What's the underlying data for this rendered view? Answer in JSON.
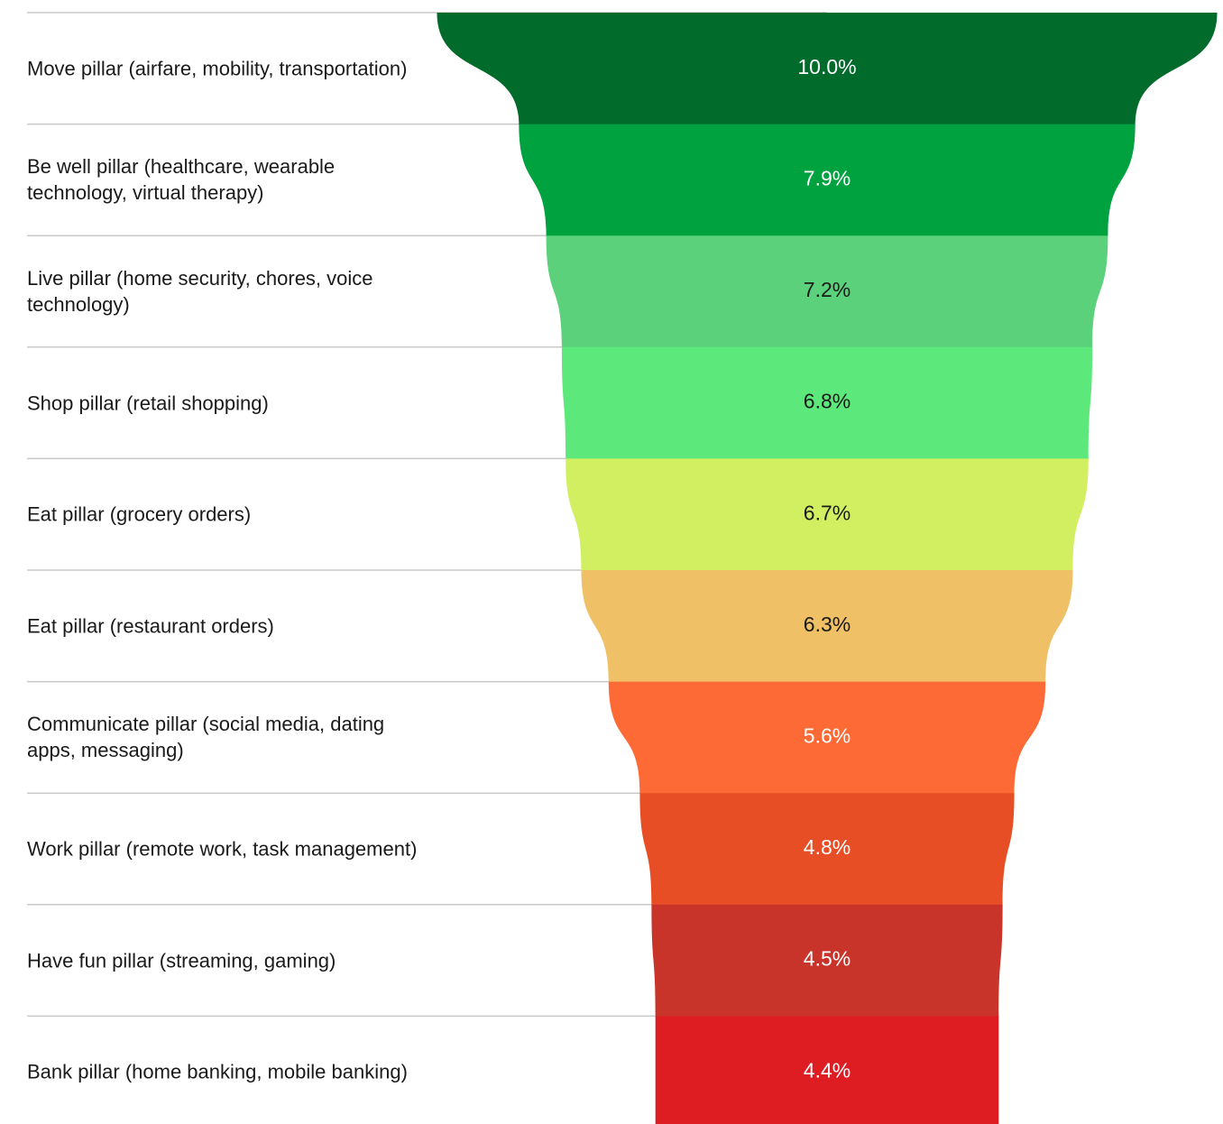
{
  "chart_data": {
    "type": "funnel",
    "categories": [
      "Move pillar (airfare, mobility, transportation)",
      "Be well pillar (healthcare, wearable technology, virtual therapy)",
      "Live pillar (home security, chores, voice technology)",
      "Shop pillar (retail shopping)",
      "Eat pillar (grocery orders)",
      "Eat pillar (restaurant orders)",
      "Communicate pillar (social media, dating apps, messaging)",
      "Work pillar (remote work, task management)",
      "Have fun pillar (streaming, gaming)",
      "Bank pillar (home banking, mobile banking)"
    ],
    "values": [
      10.0,
      7.9,
      7.2,
      6.8,
      6.7,
      6.3,
      5.6,
      4.8,
      4.5,
      4.4
    ],
    "value_labels": [
      "10.0%",
      "7.9%",
      "7.2%",
      "6.8%",
      "6.7%",
      "6.3%",
      "5.6%",
      "4.8%",
      "4.5%",
      "4.4%"
    ],
    "colors": [
      "#006b2b",
      "#00a13f",
      "#5bd17c",
      "#5de87b",
      "#d2ef62",
      "#efc065",
      "#fe6a35",
      "#e84e25",
      "#c8342a",
      "#de1d23"
    ]
  }
}
